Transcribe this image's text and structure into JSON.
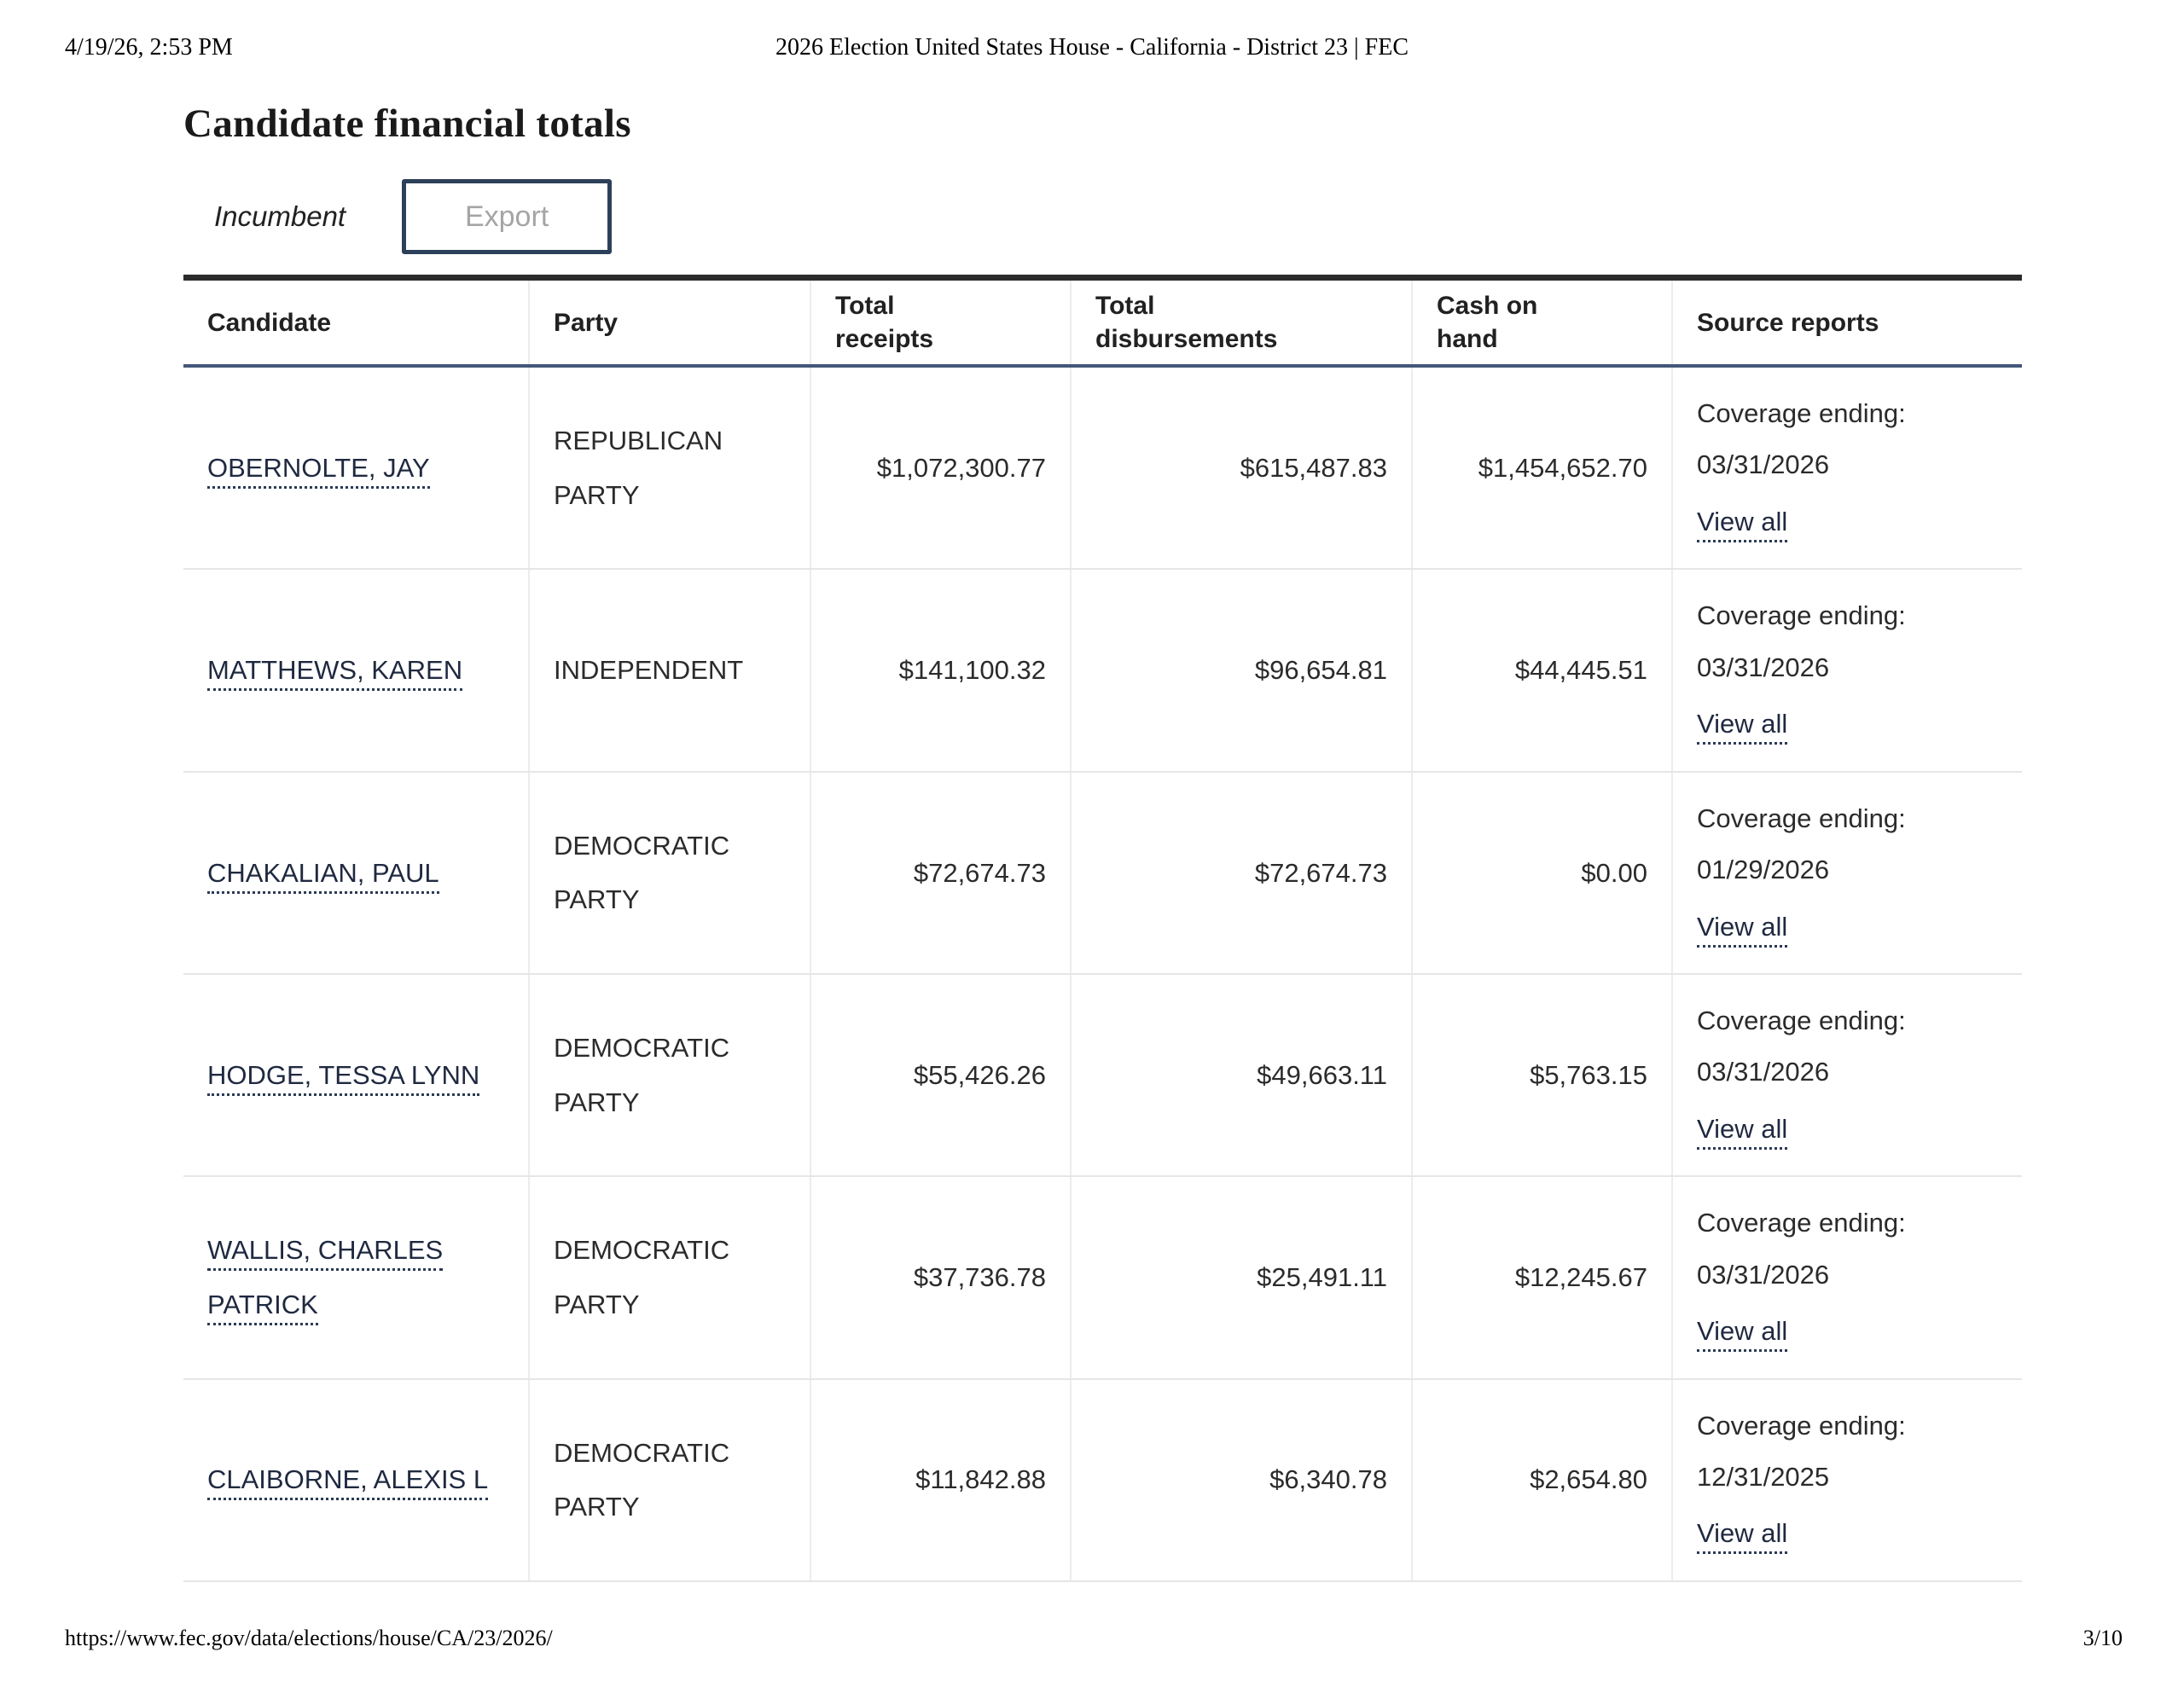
{
  "print_header": {
    "timestamp": "4/19/26, 2:53 PM",
    "document_title": "2026 Election United States House - California - District 23 | FEC"
  },
  "page": {
    "heading": "Candidate financial totals",
    "incumbent_label": "Incumbent",
    "export_button_label": "Export"
  },
  "table": {
    "columns": [
      "Candidate",
      "Party",
      "Total receipts",
      "Total disbursements",
      "Cash on hand",
      "Source reports"
    ],
    "labels": {
      "coverage_ending": "Coverage ending:",
      "view_all": "View all"
    },
    "rows": [
      {
        "candidate": "OBERNOLTE, JAY",
        "party": "REPUBLICAN PARTY",
        "total_receipts": "$1,072,300.77",
        "total_disbursements": "$615,487.83",
        "cash_on_hand": "$1,454,652.70",
        "coverage_ending": "03/31/2026"
      },
      {
        "candidate": "MATTHEWS, KAREN",
        "party": "INDEPENDENT",
        "total_receipts": "$141,100.32",
        "total_disbursements": "$96,654.81",
        "cash_on_hand": "$44,445.51",
        "coverage_ending": "03/31/2026"
      },
      {
        "candidate": "CHAKALIAN, PAUL",
        "party": "DEMOCRATIC PARTY",
        "total_receipts": "$72,674.73",
        "total_disbursements": "$72,674.73",
        "cash_on_hand": "$0.00",
        "coverage_ending": "01/29/2026"
      },
      {
        "candidate": "HODGE, TESSA LYNN",
        "party": "DEMOCRATIC PARTY",
        "total_receipts": "$55,426.26",
        "total_disbursements": "$49,663.11",
        "cash_on_hand": "$5,763.15",
        "coverage_ending": "03/31/2026"
      },
      {
        "candidate": "WALLIS, CHARLES PATRICK",
        "party": "DEMOCRATIC PARTY",
        "total_receipts": "$37,736.78",
        "total_disbursements": "$25,491.11",
        "cash_on_hand": "$12,245.67",
        "coverage_ending": "03/31/2026"
      },
      {
        "candidate": "CLAIBORNE, ALEXIS L",
        "party": "DEMOCRATIC PARTY",
        "total_receipts": "$11,842.88",
        "total_disbursements": "$6,340.78",
        "cash_on_hand": "$2,654.80",
        "coverage_ending": "12/31/2025"
      }
    ]
  },
  "print_footer": {
    "url": "https://www.fec.gov/data/elections/house/CA/23/2026/",
    "page_number": "3/10"
  },
  "colors": {
    "export_border": "#2c4059",
    "export_text": "#a5a5a5",
    "table_top_rule": "#2b2b2b",
    "header_bottom_rule": "#44567a",
    "row_rule": "#e6e6e6",
    "link_underline": "#2b3a55",
    "text": "#212121"
  }
}
